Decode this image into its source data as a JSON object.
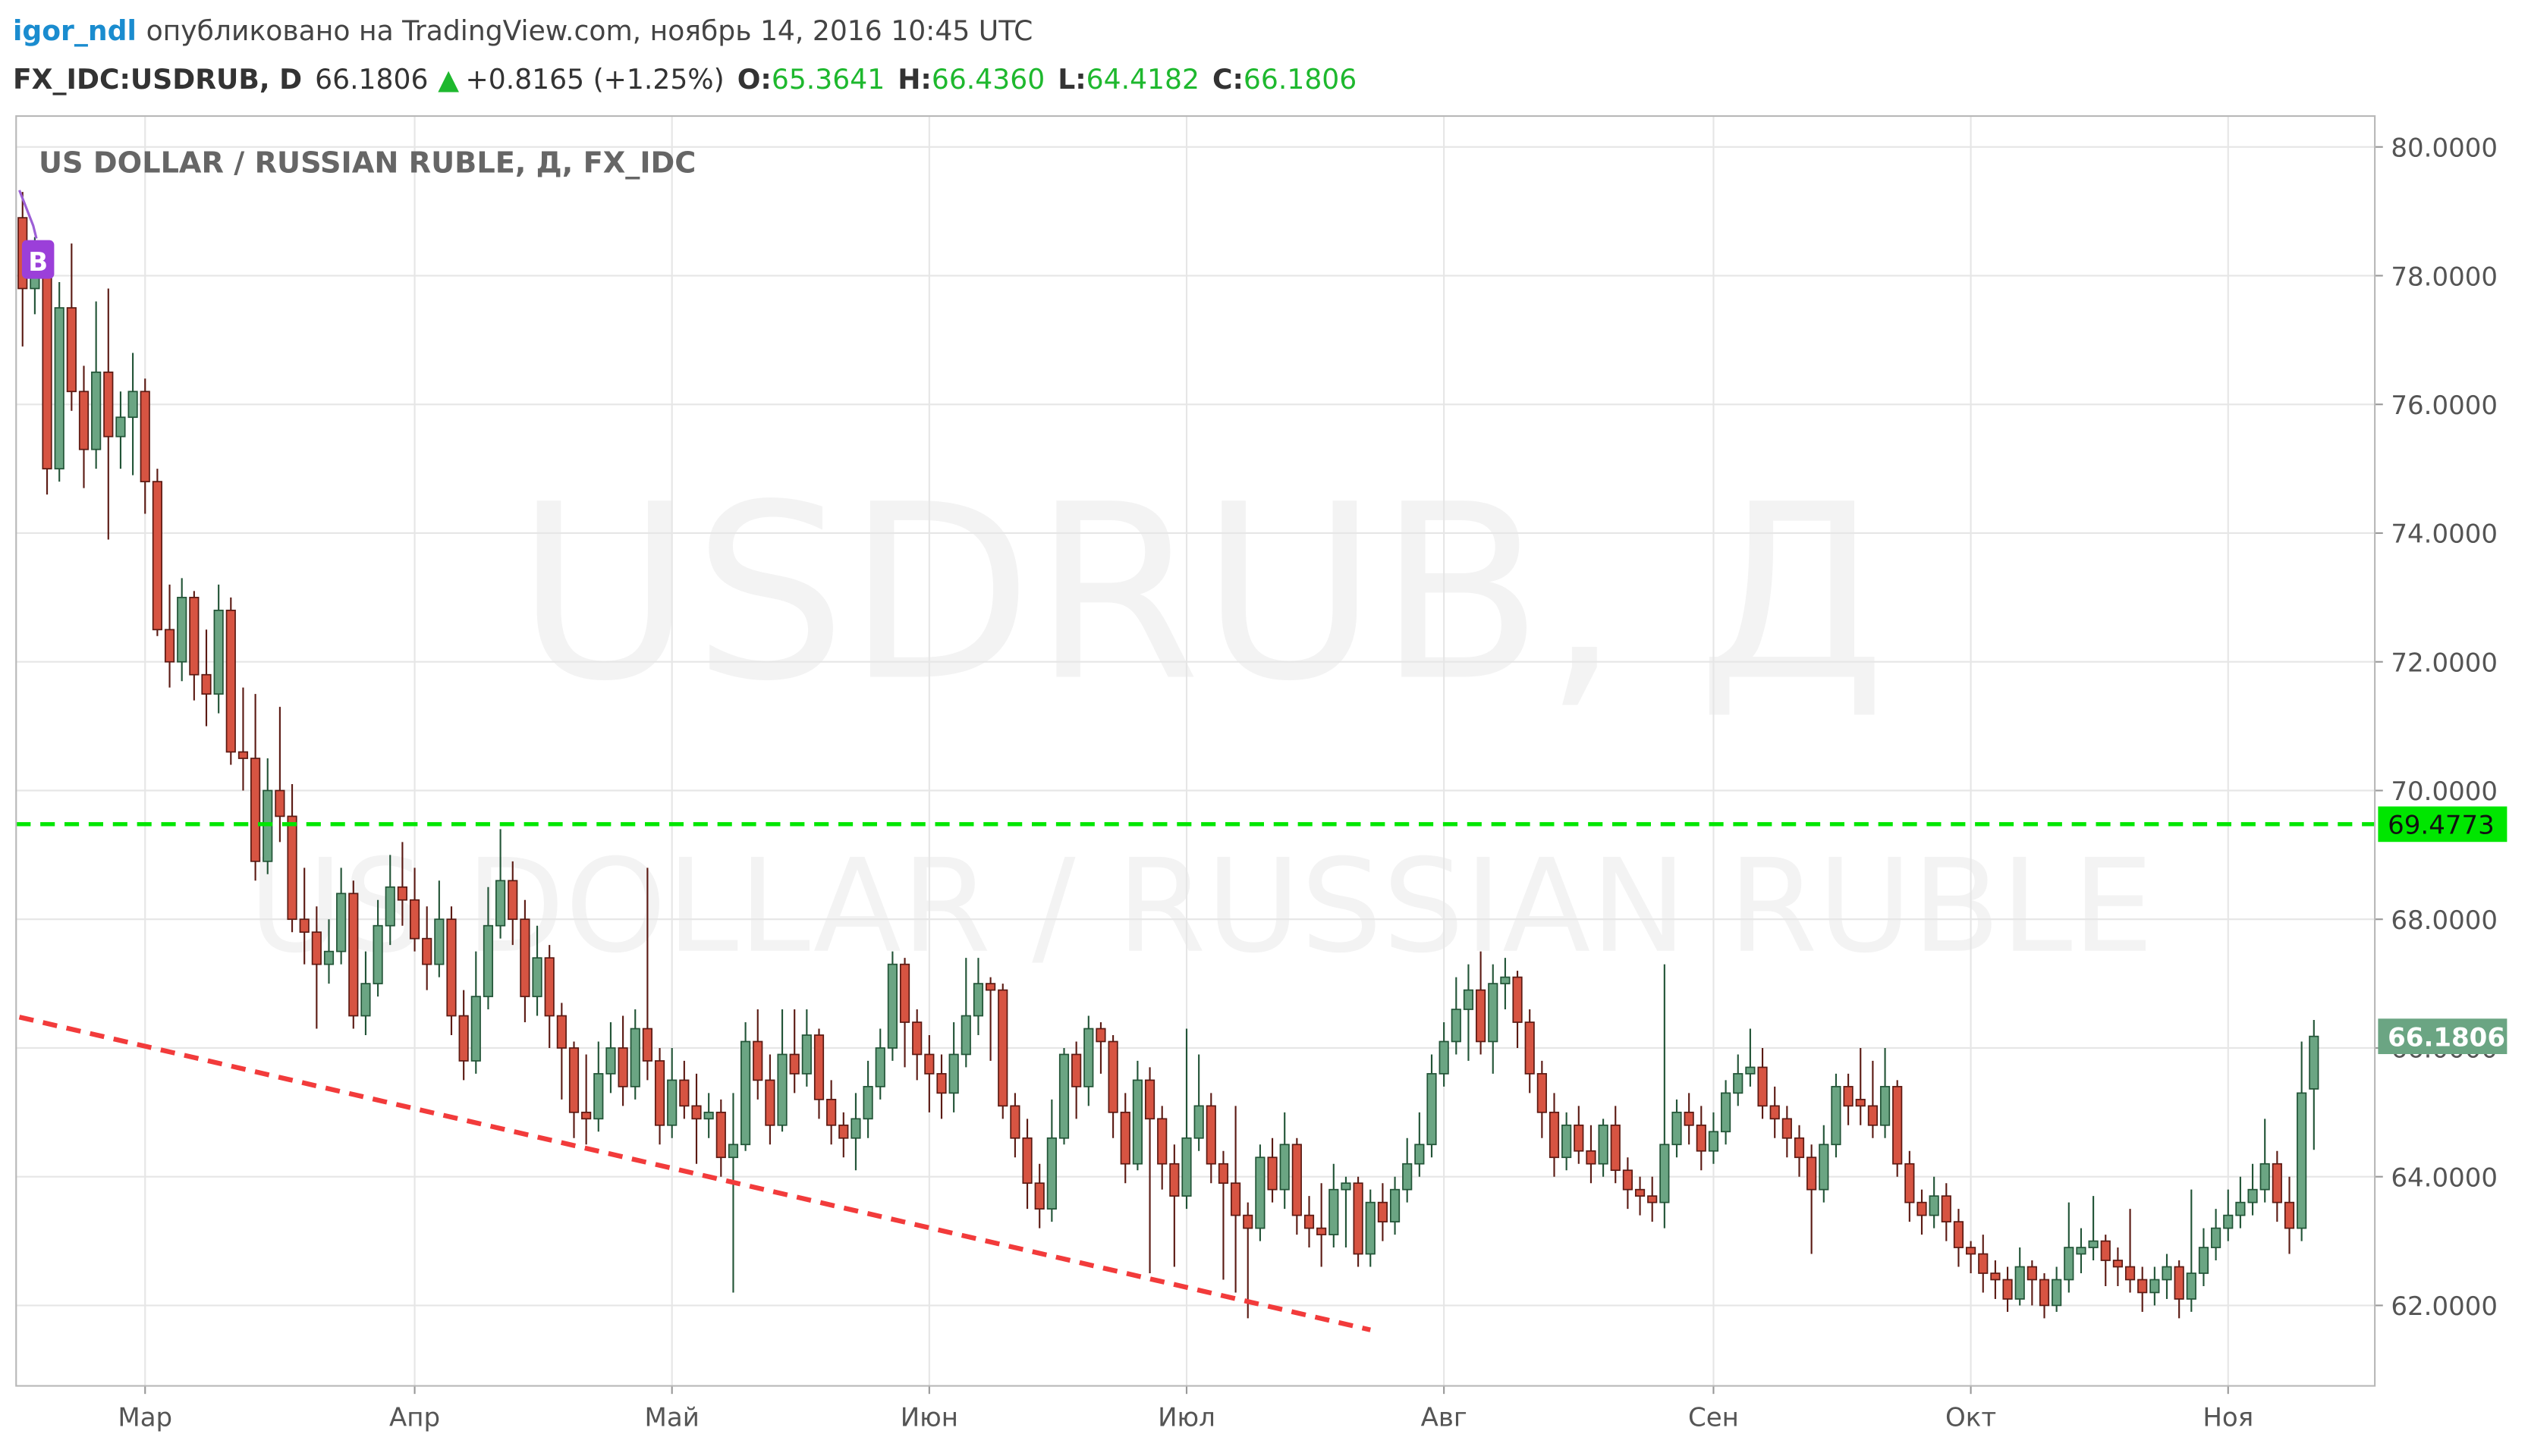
{
  "header": {
    "author": "igor_ndl",
    "published": "опубликовано на TradingView.com, ноябрь 14, 2016 10:45 UTC",
    "symbol": "FX_IDC:USDRUB, D",
    "price": "66.1806",
    "arrow": "▲",
    "change": "+0.8165 (+1.25%)",
    "o_label": "O:",
    "o": "65.3641",
    "h_label": "H:",
    "h": "66.4360",
    "l_label": "L:",
    "l": "64.4182",
    "c_label": "C:",
    "c": "66.1806"
  },
  "chart_data": {
    "type": "candlestick",
    "legend": "US DOLLAR / RUSSIAN RUBLE, Д, FX_IDC",
    "watermark": "USDRUB, Д",
    "watermark_sub": "US DOLLAR / RUSSIAN RUBLE",
    "marker_label": "B",
    "up_color": "#6ba583",
    "down_color": "#d75442",
    "up_border": "#225437",
    "down_border": "#5b1a13",
    "ylim": [
      60.75,
      80.48
    ],
    "yticks": [
      {
        "value": 62,
        "label": "62.0000"
      },
      {
        "value": 64,
        "label": "64.0000"
      },
      {
        "value": 66,
        "label": "66.0000"
      },
      {
        "value": 68,
        "label": "68.0000"
      },
      {
        "value": 70,
        "label": "70.0000"
      },
      {
        "value": 72,
        "label": "72.0000"
      },
      {
        "value": 74,
        "label": "74.0000"
      },
      {
        "value": 76,
        "label": "76.0000"
      },
      {
        "value": 78,
        "label": "78.0000"
      },
      {
        "value": 80,
        "label": "80.0000"
      }
    ],
    "grid": true,
    "hline": {
      "value": 69.4773,
      "color": "#00e600"
    },
    "trendline": {
      "x": [
        0,
        110
      ],
      "values": [
        66.48,
        61.62
      ],
      "color": "#f23b3b"
    },
    "categories": [
      null,
      null,
      null,
      null,
      null,
      null,
      null,
      null,
      null,
      null,
      "Мар",
      null,
      null,
      null,
      null,
      null,
      null,
      null,
      null,
      null,
      null,
      null,
      null,
      null,
      null,
      null,
      null,
      null,
      null,
      null,
      null,
      null,
      "Апр",
      null,
      null,
      null,
      null,
      null,
      null,
      null,
      null,
      null,
      null,
      null,
      null,
      null,
      null,
      null,
      null,
      null,
      null,
      null,
      null,
      "Май",
      null,
      null,
      null,
      null,
      null,
      null,
      null,
      null,
      null,
      null,
      null,
      null,
      null,
      null,
      null,
      null,
      null,
      null,
      null,
      null,
      "Июн",
      null,
      null,
      null,
      null,
      null,
      null,
      null,
      null,
      null,
      null,
      null,
      null,
      null,
      null,
      null,
      null,
      null,
      null,
      null,
      null,
      "Июл",
      null,
      null,
      null,
      null,
      null,
      null,
      null,
      null,
      null,
      null,
      null,
      null,
      null,
      null,
      null,
      null,
      null,
      null,
      null,
      null,
      "Авг",
      null,
      null,
      null,
      null,
      null,
      null,
      null,
      null,
      null,
      null,
      null,
      null,
      null,
      null,
      null,
      null,
      null,
      null,
      null,
      null,
      null,
      "Сен",
      null,
      null,
      null,
      null,
      null,
      null,
      null,
      null,
      null,
      null,
      null,
      null,
      null,
      null,
      null,
      null,
      null,
      null,
      null,
      null,
      "Окт",
      null,
      null,
      null,
      null,
      null,
      null,
      null,
      null,
      null,
      null,
      null,
      null,
      null,
      null,
      null,
      null,
      null,
      null,
      null,
      null,
      "Ноя",
      null,
      null,
      null,
      null,
      null,
      null,
      null
    ],
    "ohlc": [
      [
        78.9,
        79.3,
        76.9,
        77.8
      ],
      [
        77.8,
        78.6,
        77.4,
        78.3
      ],
      [
        78.3,
        78.5,
        74.6,
        75.0
      ],
      [
        75.0,
        77.9,
        74.8,
        77.5
      ],
      [
        77.5,
        78.5,
        75.9,
        76.2
      ],
      [
        76.2,
        76.6,
        74.7,
        75.3
      ],
      [
        75.3,
        77.6,
        75.0,
        76.5
      ],
      [
        76.5,
        77.8,
        73.9,
        75.5
      ],
      [
        75.5,
        76.2,
        75.0,
        75.8
      ],
      [
        75.8,
        76.8,
        74.9,
        76.2
      ],
      [
        76.2,
        76.4,
        74.3,
        74.8
      ],
      [
        74.8,
        75.0,
        72.4,
        72.5
      ],
      [
        72.5,
        73.2,
        71.6,
        72.0
      ],
      [
        72.0,
        73.3,
        71.7,
        73.0
      ],
      [
        73.0,
        73.1,
        71.4,
        71.8
      ],
      [
        71.8,
        72.5,
        71.0,
        71.5
      ],
      [
        71.5,
        73.2,
        71.2,
        72.8
      ],
      [
        72.8,
        73.0,
        70.4,
        70.6
      ],
      [
        70.6,
        71.6,
        70.0,
        70.5
      ],
      [
        70.5,
        71.5,
        68.6,
        68.9
      ],
      [
        68.9,
        70.5,
        68.7,
        70.0
      ],
      [
        70.0,
        71.3,
        69.2,
        69.6
      ],
      [
        69.6,
        70.1,
        67.8,
        68.0
      ],
      [
        68.0,
        68.8,
        67.3,
        67.8
      ],
      [
        67.8,
        68.2,
        66.3,
        67.3
      ],
      [
        67.3,
        68.0,
        67.0,
        67.5
      ],
      [
        67.5,
        68.8,
        67.3,
        68.4
      ],
      [
        68.4,
        68.6,
        66.3,
        66.5
      ],
      [
        66.5,
        67.5,
        66.2,
        67.0
      ],
      [
        67.0,
        68.3,
        66.8,
        67.9
      ],
      [
        67.9,
        69.0,
        67.6,
        68.5
      ],
      [
        68.5,
        69.2,
        67.9,
        68.3
      ],
      [
        68.3,
        68.8,
        67.5,
        67.7
      ],
      [
        67.7,
        68.2,
        66.9,
        67.3
      ],
      [
        67.3,
        68.6,
        67.1,
        68.0
      ],
      [
        68.0,
        68.2,
        66.2,
        66.5
      ],
      [
        66.5,
        66.9,
        65.5,
        65.8
      ],
      [
        65.8,
        67.5,
        65.6,
        66.8
      ],
      [
        66.8,
        68.5,
        66.6,
        67.9
      ],
      [
        67.9,
        69.4,
        67.7,
        68.6
      ],
      [
        68.6,
        68.9,
        67.6,
        68.0
      ],
      [
        68.0,
        68.3,
        66.4,
        66.8
      ],
      [
        66.8,
        67.9,
        66.5,
        67.4
      ],
      [
        67.4,
        67.6,
        66.0,
        66.5
      ],
      [
        66.5,
        66.7,
        65.2,
        66.0
      ],
      [
        66.0,
        66.1,
        64.6,
        65.0
      ],
      [
        65.0,
        65.9,
        64.5,
        64.9
      ],
      [
        64.9,
        66.1,
        64.7,
        65.6
      ],
      [
        65.6,
        66.4,
        65.3,
        66.0
      ],
      [
        66.0,
        66.5,
        65.1,
        65.4
      ],
      [
        65.4,
        66.6,
        65.2,
        66.3
      ],
      [
        66.3,
        68.8,
        65.5,
        65.8
      ],
      [
        65.8,
        66.0,
        64.5,
        64.8
      ],
      [
        64.8,
        66.0,
        64.6,
        65.5
      ],
      [
        65.5,
        65.8,
        64.9,
        65.1
      ],
      [
        65.1,
        65.6,
        64.2,
        64.9
      ],
      [
        64.9,
        65.3,
        64.6,
        65.0
      ],
      [
        65.0,
        65.2,
        64.0,
        64.3
      ],
      [
        64.3,
        65.3,
        62.2,
        64.5
      ],
      [
        64.5,
        66.4,
        64.4,
        66.1
      ],
      [
        66.1,
        66.6,
        65.2,
        65.5
      ],
      [
        65.5,
        65.9,
        64.5,
        64.8
      ],
      [
        64.8,
        66.6,
        64.7,
        65.9
      ],
      [
        65.9,
        66.6,
        65.3,
        65.6
      ],
      [
        65.6,
        66.6,
        65.4,
        66.2
      ],
      [
        66.2,
        66.3,
        64.9,
        65.2
      ],
      [
        65.2,
        65.5,
        64.5,
        64.8
      ],
      [
        64.8,
        65.0,
        64.3,
        64.6
      ],
      [
        64.6,
        65.3,
        64.1,
        64.9
      ],
      [
        64.9,
        65.8,
        64.6,
        65.4
      ],
      [
        65.4,
        66.3,
        65.2,
        66.0
      ],
      [
        66.0,
        67.5,
        65.8,
        67.3
      ],
      [
        67.3,
        67.4,
        65.7,
        66.4
      ],
      [
        66.4,
        66.6,
        65.5,
        65.9
      ],
      [
        65.9,
        66.2,
        65.0,
        65.6
      ],
      [
        65.6,
        65.9,
        64.9,
        65.3
      ],
      [
        65.3,
        66.4,
        65.0,
        65.9
      ],
      [
        65.9,
        67.4,
        65.7,
        66.5
      ],
      [
        66.5,
        67.4,
        66.2,
        67.0
      ],
      [
        67.0,
        67.1,
        65.8,
        66.9
      ],
      [
        66.9,
        67.0,
        64.9,
        65.1
      ],
      [
        65.1,
        65.3,
        64.3,
        64.6
      ],
      [
        64.6,
        64.9,
        63.5,
        63.9
      ],
      [
        63.9,
        64.2,
        63.2,
        63.5
      ],
      [
        63.5,
        65.2,
        63.3,
        64.6
      ],
      [
        64.6,
        66.0,
        64.5,
        65.9
      ],
      [
        65.9,
        66.1,
        64.9,
        65.4
      ],
      [
        65.4,
        66.5,
        65.1,
        66.3
      ],
      [
        66.3,
        66.4,
        65.6,
        66.1
      ],
      [
        66.1,
        66.2,
        64.6,
        65.0
      ],
      [
        65.0,
        65.3,
        63.9,
        64.2
      ],
      [
        64.2,
        65.8,
        64.1,
        65.5
      ],
      [
        65.5,
        65.7,
        62.5,
        64.9
      ],
      [
        64.9,
        65.1,
        63.8,
        64.2
      ],
      [
        64.2,
        64.5,
        62.6,
        63.7
      ],
      [
        63.7,
        66.3,
        63.5,
        64.6
      ],
      [
        64.6,
        65.9,
        64.4,
        65.1
      ],
      [
        65.1,
        65.3,
        63.9,
        64.2
      ],
      [
        64.2,
        64.4,
        62.4,
        63.9
      ],
      [
        63.9,
        65.1,
        62.2,
        63.4
      ],
      [
        63.4,
        63.6,
        61.8,
        63.2
      ],
      [
        63.2,
        64.5,
        63.0,
        64.3
      ],
      [
        64.3,
        64.6,
        63.6,
        63.8
      ],
      [
        63.8,
        65.0,
        63.5,
        64.5
      ],
      [
        64.5,
        64.6,
        63.1,
        63.4
      ],
      [
        63.4,
        63.7,
        62.9,
        63.2
      ],
      [
        63.2,
        63.9,
        62.6,
        63.1
      ],
      [
        63.1,
        64.2,
        62.9,
        63.8
      ],
      [
        63.8,
        64.0,
        62.9,
        63.9
      ],
      [
        63.9,
        64.0,
        62.6,
        62.8
      ],
      [
        62.8,
        63.8,
        62.6,
        63.6
      ],
      [
        63.6,
        63.9,
        63.0,
        63.3
      ],
      [
        63.3,
        64.0,
        63.1,
        63.8
      ],
      [
        63.8,
        64.6,
        63.6,
        64.2
      ],
      [
        64.2,
        65.0,
        64.0,
        64.5
      ],
      [
        64.5,
        65.9,
        64.3,
        65.6
      ],
      [
        65.6,
        66.4,
        65.4,
        66.1
      ],
      [
        66.1,
        67.1,
        65.9,
        66.6
      ],
      [
        66.6,
        67.3,
        65.8,
        66.9
      ],
      [
        66.9,
        67.5,
        65.9,
        66.1
      ],
      [
        66.1,
        67.3,
        65.6,
        67.0
      ],
      [
        67.0,
        67.4,
        66.6,
        67.1
      ],
      [
        67.1,
        67.2,
        66.0,
        66.4
      ],
      [
        66.4,
        66.6,
        65.3,
        65.6
      ],
      [
        65.6,
        65.8,
        64.6,
        65.0
      ],
      [
        65.0,
        65.3,
        64.0,
        64.3
      ],
      [
        64.3,
        65.0,
        64.1,
        64.8
      ],
      [
        64.8,
        65.1,
        64.2,
        64.4
      ],
      [
        64.4,
        64.8,
        63.9,
        64.2
      ],
      [
        64.2,
        64.9,
        64.0,
        64.8
      ],
      [
        64.8,
        65.1,
        63.9,
        64.1
      ],
      [
        64.1,
        64.3,
        63.5,
        63.8
      ],
      [
        63.8,
        64.0,
        63.4,
        63.7
      ],
      [
        63.7,
        64.0,
        63.3,
        63.6
      ],
      [
        63.6,
        67.3,
        63.2,
        64.5
      ],
      [
        64.5,
        65.2,
        64.3,
        65.0
      ],
      [
        65.0,
        65.3,
        64.5,
        64.8
      ],
      [
        64.8,
        65.1,
        64.1,
        64.4
      ],
      [
        64.4,
        65.0,
        64.2,
        64.7
      ],
      [
        64.7,
        65.5,
        64.5,
        65.3
      ],
      [
        65.3,
        65.9,
        65.1,
        65.6
      ],
      [
        65.6,
        66.3,
        65.4,
        65.7
      ],
      [
        65.7,
        66.0,
        64.9,
        65.1
      ],
      [
        65.1,
        65.4,
        64.6,
        64.9
      ],
      [
        64.9,
        65.1,
        64.3,
        64.6
      ],
      [
        64.6,
        64.8,
        64.0,
        64.3
      ],
      [
        64.3,
        64.5,
        62.8,
        63.8
      ],
      [
        63.8,
        64.8,
        63.6,
        64.5
      ],
      [
        64.5,
        65.6,
        64.3,
        65.4
      ],
      [
        65.4,
        65.6,
        64.8,
        65.1
      ],
      [
        65.2,
        66.0,
        64.8,
        65.1
      ],
      [
        65.1,
        65.8,
        64.6,
        64.8
      ],
      [
        64.8,
        66.0,
        64.6,
        65.4
      ],
      [
        65.4,
        65.5,
        64.0,
        64.2
      ],
      [
        64.2,
        64.4,
        63.3,
        63.6
      ],
      [
        63.6,
        63.8,
        63.1,
        63.4
      ],
      [
        63.4,
        64.0,
        63.2,
        63.7
      ],
      [
        63.7,
        63.9,
        63.0,
        63.3
      ],
      [
        63.3,
        63.5,
        62.6,
        62.9
      ],
      [
        62.9,
        63.0,
        62.5,
        62.8
      ],
      [
        62.8,
        63.1,
        62.2,
        62.5
      ],
      [
        62.5,
        62.7,
        62.1,
        62.4
      ],
      [
        62.4,
        62.6,
        61.9,
        62.1
      ],
      [
        62.1,
        62.9,
        62.0,
        62.6
      ],
      [
        62.6,
        62.7,
        62.0,
        62.4
      ],
      [
        62.4,
        62.5,
        61.8,
        62.0
      ],
      [
        62.0,
        62.6,
        61.9,
        62.4
      ],
      [
        62.4,
        63.6,
        62.2,
        62.9
      ],
      [
        62.8,
        63.2,
        62.5,
        62.9
      ],
      [
        62.9,
        63.7,
        62.7,
        63.0
      ],
      [
        63.0,
        63.1,
        62.3,
        62.7
      ],
      [
        62.7,
        62.9,
        62.3,
        62.6
      ],
      [
        62.6,
        63.5,
        62.2,
        62.4
      ],
      [
        62.4,
        62.6,
        61.9,
        62.2
      ],
      [
        62.2,
        62.6,
        62.0,
        62.4
      ],
      [
        62.4,
        62.8,
        62.1,
        62.6
      ],
      [
        62.6,
        62.7,
        61.8,
        62.1
      ],
      [
        62.1,
        63.8,
        61.9,
        62.5
      ],
      [
        62.5,
        63.2,
        62.3,
        62.9
      ],
      [
        62.9,
        63.5,
        62.7,
        63.2
      ],
      [
        63.2,
        63.8,
        63.0,
        63.4
      ],
      [
        63.4,
        64.0,
        63.2,
        63.6
      ],
      [
        63.6,
        64.2,
        63.4,
        63.8
      ],
      [
        63.8,
        64.9,
        63.6,
        64.2
      ],
      [
        64.2,
        64.4,
        63.3,
        63.6
      ],
      [
        63.6,
        64.0,
        62.8,
        63.2
      ],
      [
        63.2,
        66.1,
        63.0,
        65.3
      ],
      [
        65.3641,
        66.436,
        64.4182,
        66.1806
      ]
    ]
  }
}
